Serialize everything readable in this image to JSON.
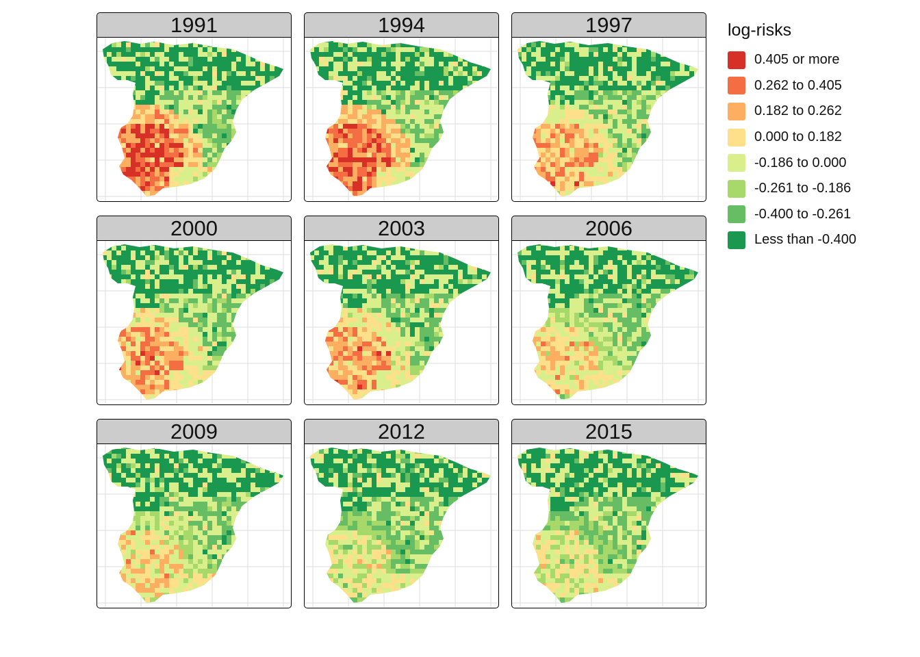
{
  "legend": {
    "title": "log-risks",
    "items": [
      {
        "label": "0.405 or more",
        "color": "#d73027"
      },
      {
        "label": "0.262 to 0.405",
        "color": "#f46d43"
      },
      {
        "label": "0.182 to 0.262",
        "color": "#fdae61"
      },
      {
        "label": "0.000 to 0.182",
        "color": "#fee08b"
      },
      {
        "label": "-0.186 to 0.000",
        "color": "#d9ef8b"
      },
      {
        "label": "-0.261 to -0.186",
        "color": "#a6d96a"
      },
      {
        "label": "-0.400 to -0.261",
        "color": "#66bd63"
      },
      {
        "label": "Less than -0.400",
        "color": "#1a9850"
      }
    ]
  },
  "panels": [
    {
      "year": "1991",
      "south_west_risk_level": 0,
      "north_risk_level": 7
    },
    {
      "year": "1994",
      "south_west_risk_level": 0,
      "north_risk_level": 7
    },
    {
      "year": "1997",
      "south_west_risk_level": 1,
      "north_risk_level": 7
    },
    {
      "year": "2000",
      "south_west_risk_level": 1,
      "north_risk_level": 7
    },
    {
      "year": "2003",
      "south_west_risk_level": 1,
      "north_risk_level": 7
    },
    {
      "year": "2006",
      "south_west_risk_level": 2,
      "north_risk_level": 7
    },
    {
      "year": "2009",
      "south_west_risk_level": 2,
      "north_risk_level": 7
    },
    {
      "year": "2012",
      "south_west_risk_level": 3,
      "north_risk_level": 7
    },
    {
      "year": "2015",
      "south_west_risk_level": 3,
      "north_risk_level": 7
    }
  ]
}
